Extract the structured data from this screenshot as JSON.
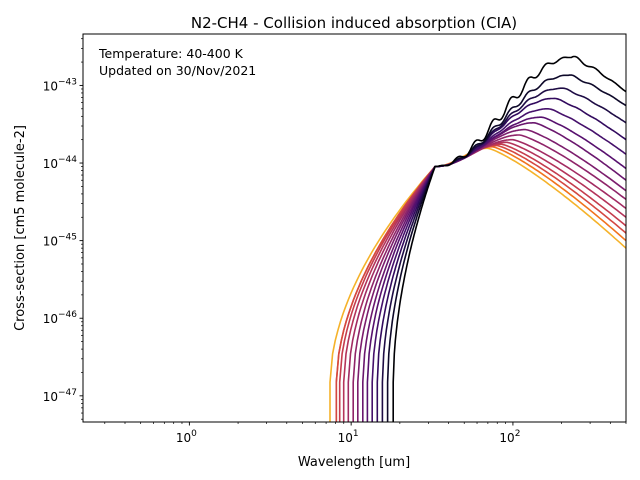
{
  "chart_data": {
    "type": "line",
    "title": "N2-CH4 - Collision induced absorption (CIA)",
    "xlabel": "Wavelength [um]",
    "ylabel": "Cross-section [cm5 molecule-2]",
    "xscale": "log",
    "yscale": "log",
    "xlim": [
      0.22,
      500
    ],
    "ylim": [
      4.6e-48,
      4.6e-43
    ],
    "grid": false,
    "legend": "none",
    "annotation": [
      "Temperature: 40-400 K",
      "Updated on 30/Nov/2021"
    ],
    "x_ticks": [
      {
        "value": 1,
        "base": "10",
        "exp": "0"
      },
      {
        "value": 10,
        "base": "10",
        "exp": "1"
      },
      {
        "value": 100,
        "base": "10",
        "exp": "2"
      }
    ],
    "y_ticks": [
      {
        "value": 1e-47,
        "base": "10",
        "exp": "−47"
      },
      {
        "value": 1e-46,
        "base": "10",
        "exp": "−46"
      },
      {
        "value": 1e-45,
        "base": "10",
        "exp": "−45"
      },
      {
        "value": 1e-44,
        "base": "10",
        "exp": "−44"
      },
      {
        "value": 1e-43,
        "base": "10",
        "exp": "−43"
      }
    ],
    "colormap": "inferno",
    "series": [
      {
        "color": "#000004",
        "cutoff_um": 18.2,
        "peak_um": 230,
        "peak_value": 2.3e-43,
        "end_value": 8.3e-44,
        "temperature_order": 1
      },
      {
        "color": "#0d0829",
        "cutoff_um": 16.8,
        "peak_um": 220,
        "peak_value": 1.35e-43,
        "end_value": 5.5e-44,
        "temperature_order": 2
      },
      {
        "color": "#1e0c45",
        "cutoff_um": 15.6,
        "peak_um": 200,
        "peak_value": 9.2e-44,
        "end_value": 3.3e-44,
        "temperature_order": 3
      },
      {
        "color": "#320a5e",
        "cutoff_um": 14.5,
        "peak_um": 180,
        "peak_value": 6.8e-44,
        "end_value": 2e-44,
        "temperature_order": 4
      },
      {
        "color": "#45106b",
        "cutoff_um": 13.5,
        "peak_um": 165,
        "peak_value": 5e-44,
        "end_value": 1.3e-44,
        "temperature_order": 5
      },
      {
        "color": "#57106e",
        "cutoff_um": 12.6,
        "peak_um": 150,
        "peak_value": 3.9e-44,
        "end_value": 8.5e-45,
        "temperature_order": 6
      },
      {
        "color": "#6a176e",
        "cutoff_um": 11.8,
        "peak_um": 135,
        "peak_value": 3.3e-44,
        "end_value": 6e-45,
        "temperature_order": 7
      },
      {
        "color": "#7c1d6d",
        "cutoff_um": 11.0,
        "peak_um": 120,
        "peak_value": 2.7e-44,
        "end_value": 4.4e-45,
        "temperature_order": 8
      },
      {
        "color": "#8f2469",
        "cutoff_um": 10.3,
        "peak_um": 110,
        "peak_value": 2.3e-44,
        "end_value": 3.4e-45,
        "temperature_order": 9
      },
      {
        "color": "#a22b62",
        "cutoff_um": 9.6,
        "peak_um": 100,
        "peak_value": 2e-44,
        "end_value": 2.6e-45,
        "temperature_order": 10
      },
      {
        "color": "#b4345a",
        "cutoff_um": 9.0,
        "peak_um": 92,
        "peak_value": 1.85e-44,
        "end_value": 2e-45,
        "temperature_order": 11
      },
      {
        "color": "#c53d4e",
        "cutoff_um": 8.5,
        "peak_um": 85,
        "peak_value": 1.75e-44,
        "end_value": 1.55e-45,
        "temperature_order": 12
      },
      {
        "color": "#d44842",
        "cutoff_um": 8.1,
        "peak_um": 80,
        "peak_value": 1.68e-44,
        "end_value": 1.25e-45,
        "temperature_order": 13
      },
      {
        "color": "#f1731d",
        "cutoff_um": 8.1,
        "peak_um": 75,
        "peak_value": 1.62e-44,
        "end_value": 1e-45,
        "temperature_order": 14
      },
      {
        "color": "#f5b22a",
        "cutoff_um": 7.4,
        "peak_um": 70,
        "peak_value": 1.55e-44,
        "end_value": 8e-46,
        "temperature_order": 15
      }
    ]
  }
}
